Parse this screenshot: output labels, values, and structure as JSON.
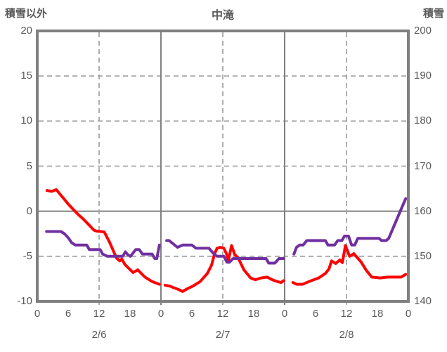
{
  "header": {
    "left_axis_title": "積雪以外",
    "chart_title": "中滝",
    "right_axis_title": "積雪"
  },
  "colors": {
    "temperature_line": "#ff0000",
    "snow_line": "#7030a0",
    "axis_border": "#808080",
    "grid_dashed": "#a6a6a6",
    "grid_solid": "#808080",
    "text": "#595959",
    "background": "#ffffff"
  },
  "chart_data": {
    "type": "line",
    "title": "中滝",
    "grid": true,
    "legend": "none",
    "x_axis": {
      "total_hours": 72,
      "tick_hours": [
        0,
        6,
        12,
        18,
        24,
        30,
        36,
        42,
        48,
        54,
        60,
        66,
        72
      ],
      "tick_labels": [
        "0",
        "6",
        "12",
        "18",
        "0",
        "6",
        "12",
        "18",
        "0",
        "6",
        "12",
        "18",
        "0"
      ],
      "day_labels": [
        "2/6",
        "2/7",
        "2/8"
      ],
      "day_label_hours": [
        12,
        36,
        60
      ],
      "vertical_dashed_hours": [
        12,
        36,
        60
      ],
      "vertical_solid_hours": [
        24,
        48
      ]
    },
    "left_axis": {
      "title": "積雪以外",
      "min": -10,
      "max": 20,
      "ticks": [
        20,
        15,
        10,
        5,
        0,
        -5,
        -10
      ],
      "solid_gridline_at": 0
    },
    "right_axis": {
      "title": "積雪",
      "min": 140,
      "max": 200,
      "ticks": [
        200,
        190,
        180,
        170,
        160,
        150,
        140
      ]
    },
    "series": [
      {
        "name": "red",
        "axis": "left",
        "color": "#ff0000",
        "segments": [
          [
            [
              1.9,
              2.3
            ],
            [
              2.8,
              2.2
            ],
            [
              3.7,
              2.4
            ],
            [
              4.4,
              1.9
            ],
            [
              5,
              1.5
            ],
            [
              6,
              0.8
            ],
            [
              7,
              0.2
            ],
            [
              8,
              -0.4
            ],
            [
              9,
              -0.9
            ],
            [
              10,
              -1.5
            ],
            [
              11,
              -2.1
            ],
            [
              11.5,
              -2.2
            ],
            [
              13,
              -2.3
            ],
            [
              14,
              -3.4
            ],
            [
              15,
              -4.7
            ],
            [
              15.4,
              -5.2
            ],
            [
              16,
              -5.5
            ],
            [
              16.4,
              -5.3
            ],
            [
              17,
              -5.9
            ],
            [
              17.7,
              -6.3
            ],
            [
              18.6,
              -6.8
            ],
            [
              19.5,
              -6.5
            ],
            [
              20.9,
              -7.3
            ],
            [
              22.3,
              -7.8
            ],
            [
              23.7,
              -8.1
            ]
          ],
          [
            [
              24.8,
              -8.2
            ],
            [
              25.7,
              -8.3
            ],
            [
              26.6,
              -8.5
            ],
            [
              27.5,
              -8.7
            ],
            [
              28.2,
              -8.9
            ],
            [
              29.1,
              -8.6
            ],
            [
              30.2,
              -8.3
            ],
            [
              31.6,
              -7.8
            ],
            [
              33,
              -6.9
            ],
            [
              33.8,
              -6.0
            ],
            [
              34.4,
              -4.7
            ],
            [
              34.9,
              -4.1
            ],
            [
              35.5,
              -4.0
            ],
            [
              36.2,
              -4.1
            ],
            [
              36.7,
              -4.7
            ],
            [
              37.1,
              -5.4
            ],
            [
              37.7,
              -3.8
            ],
            [
              38.3,
              -4.8
            ],
            [
              38.9,
              -5.1
            ],
            [
              40.1,
              -6.5
            ],
            [
              41.4,
              -7.4
            ],
            [
              42.3,
              -7.6
            ],
            [
              43.4,
              -7.4
            ],
            [
              44.6,
              -7.3
            ],
            [
              45.6,
              -7.6
            ],
            [
              46.6,
              -7.8
            ],
            [
              47.3,
              -7.9
            ],
            [
              47.8,
              -7.7
            ]
          ],
          [
            [
              49.6,
              -7.9
            ],
            [
              50.3,
              -8.1
            ],
            [
              51.5,
              -8.1
            ],
            [
              52.7,
              -7.8
            ],
            [
              54.6,
              -7.4
            ],
            [
              55.9,
              -6.9
            ],
            [
              56.6,
              -6.4
            ],
            [
              57.1,
              -5.5
            ],
            [
              57.9,
              -5.8
            ],
            [
              58.7,
              -5.4
            ],
            [
              59.2,
              -5.7
            ],
            [
              59.8,
              -3.8
            ],
            [
              60.6,
              -5.0
            ],
            [
              61.4,
              -4.7
            ],
            [
              62.8,
              -5.6
            ],
            [
              63.9,
              -6.6
            ],
            [
              64.9,
              -7.3
            ],
            [
              66.5,
              -7.4
            ],
            [
              68,
              -7.3
            ],
            [
              69.5,
              -7.3
            ],
            [
              70.6,
              -7.3
            ],
            [
              71.5,
              -7.0
            ]
          ]
        ]
      },
      {
        "name": "purple",
        "axis": "right",
        "color": "#7030a0",
        "segments": [
          [
            [
              1.8,
              155.5
            ],
            [
              4.6,
              155.5
            ],
            [
              5.3,
              155
            ],
            [
              6.1,
              154
            ],
            [
              6.7,
              153
            ],
            [
              7.4,
              152.5
            ],
            [
              9.6,
              152.5
            ],
            [
              10.1,
              151.5
            ],
            [
              12.2,
              151.5
            ],
            [
              12.7,
              150.5
            ],
            [
              13.6,
              150
            ],
            [
              16.6,
              150
            ],
            [
              17.1,
              151
            ],
            [
              17.6,
              150.3
            ],
            [
              18.1,
              150
            ],
            [
              19.1,
              151.5
            ],
            [
              19.8,
              151.5
            ],
            [
              20.4,
              150.5
            ],
            [
              22.3,
              150.5
            ],
            [
              22.8,
              149.5
            ],
            [
              23.2,
              149.5
            ],
            [
              23.7,
              152.5
            ]
          ],
          [
            [
              25.1,
              153.5
            ],
            [
              25.6,
              153.5
            ],
            [
              27.2,
              152
            ],
            [
              28.2,
              152.5
            ],
            [
              30,
              152.5
            ],
            [
              30.8,
              151.8
            ],
            [
              33.3,
              151.8
            ],
            [
              34.3,
              150.5
            ],
            [
              34.9,
              150
            ],
            [
              36.2,
              150
            ],
            [
              36.8,
              148.7
            ],
            [
              37.3,
              148.7
            ],
            [
              38,
              149.5
            ],
            [
              44.4,
              149.5
            ],
            [
              44.9,
              148.5
            ],
            [
              46.1,
              148.5
            ],
            [
              46.9,
              149.5
            ],
            [
              47.8,
              149.5
            ]
          ],
          [
            [
              49.8,
              150.5
            ],
            [
              50.3,
              152
            ],
            [
              50.9,
              152.5
            ],
            [
              51.6,
              152.5
            ],
            [
              52.3,
              153.5
            ],
            [
              55.9,
              153.5
            ],
            [
              56.4,
              152.5
            ],
            [
              57.7,
              152.5
            ],
            [
              58.3,
              153.5
            ],
            [
              59.1,
              153.5
            ],
            [
              59.6,
              154.5
            ],
            [
              60.4,
              154.5
            ],
            [
              61,
              152.5
            ],
            [
              61.6,
              152.5
            ],
            [
              62.2,
              154
            ],
            [
              66.3,
              154
            ],
            [
              66.8,
              153.5
            ],
            [
              67.7,
              153.5
            ],
            [
              68.2,
              154
            ],
            [
              69.5,
              157.5
            ],
            [
              70.8,
              161
            ],
            [
              71.5,
              162.8
            ]
          ]
        ]
      }
    ]
  }
}
